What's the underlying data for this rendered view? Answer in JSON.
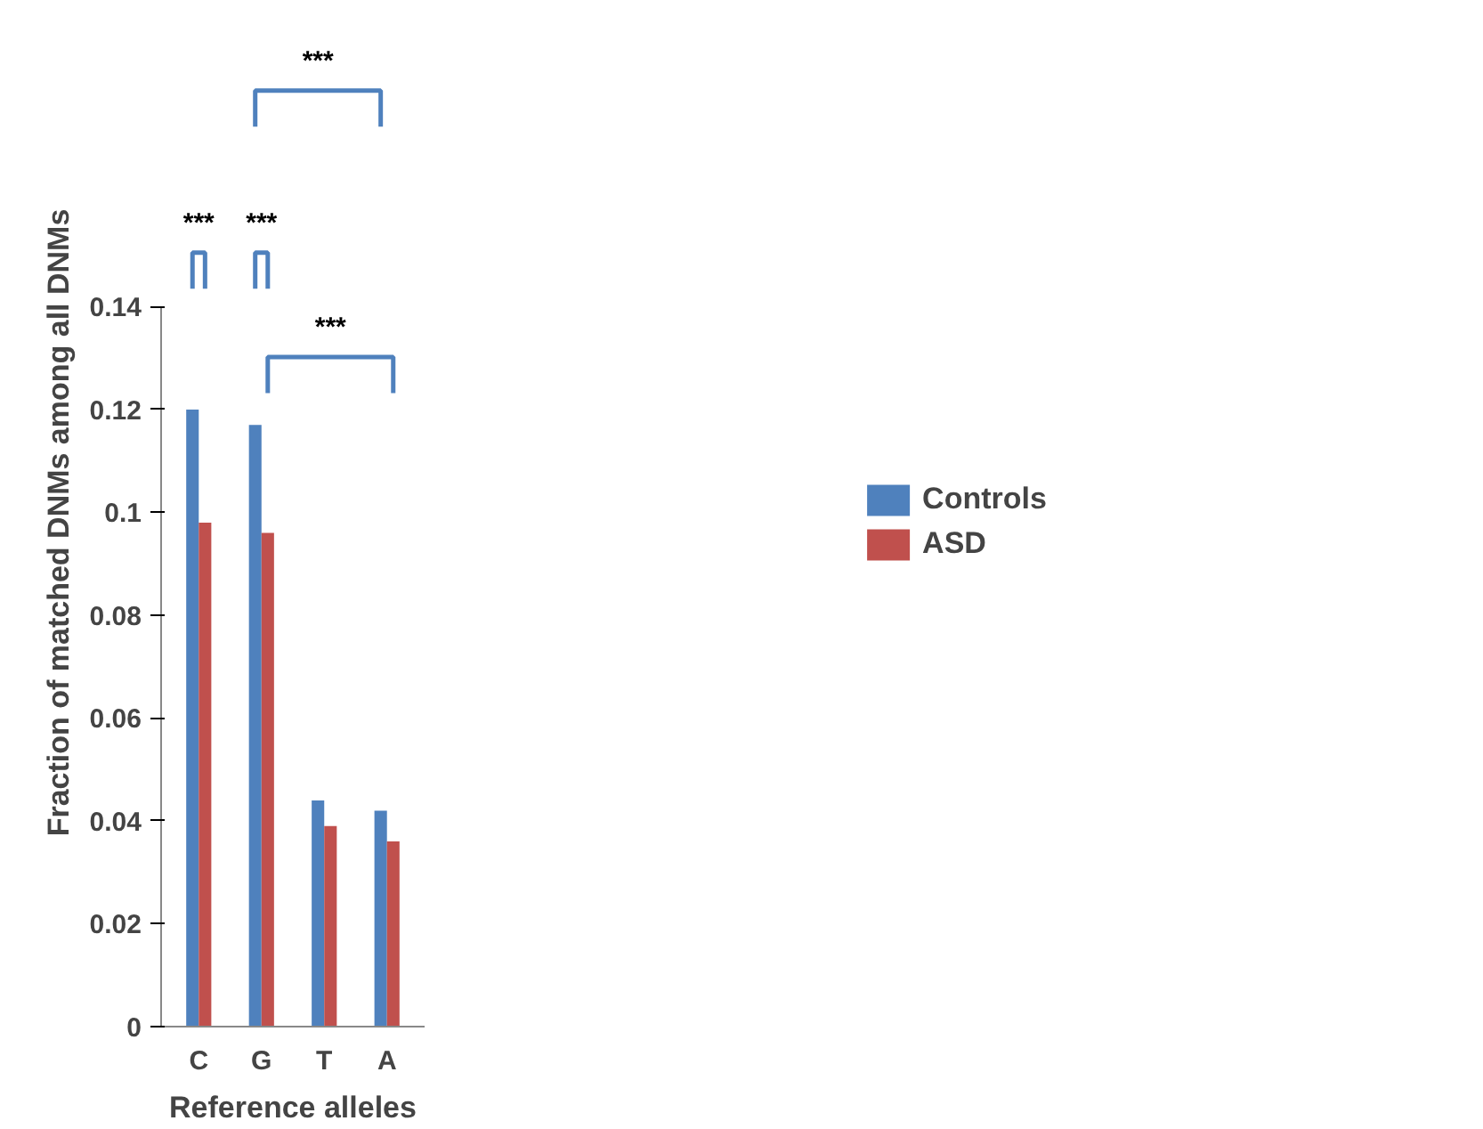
{
  "chart_data": {
    "type": "bar",
    "xlabel": "Reference alleles",
    "ylabel": "Fraction of matched DNMs among all DNMs",
    "categories": [
      "C",
      "G",
      "T",
      "A"
    ],
    "series": [
      {
        "name": "Controls",
        "color": "#4f81bd",
        "values": [
          0.12,
          0.117,
          0.044,
          0.042
        ]
      },
      {
        "name": "ASD",
        "color": "#c0504d",
        "values": [
          0.098,
          0.096,
          0.039,
          0.036
        ]
      }
    ],
    "ylim": [
      0,
      0.14
    ],
    "yticks": [
      0,
      0.02,
      0.04,
      0.06,
      0.08,
      0.1,
      0.12,
      0.14
    ],
    "grid": false,
    "legend": "right",
    "annotations": [
      "***",
      "***",
      "***",
      "***"
    ]
  }
}
